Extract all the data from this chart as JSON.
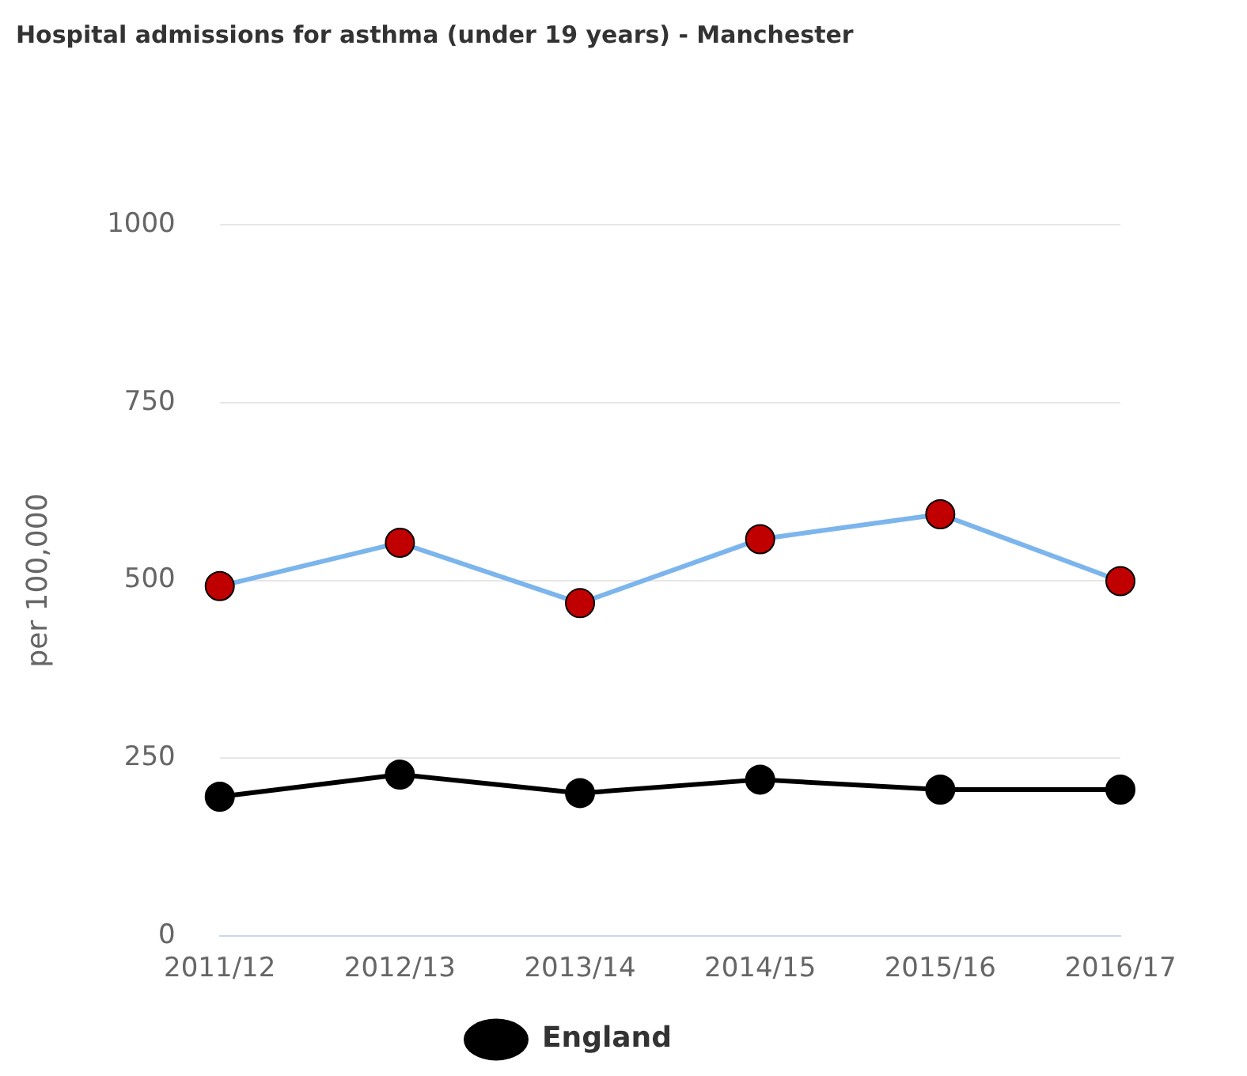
{
  "chart_data": {
    "type": "line",
    "title": "Hospital admissions for asthma (under 19 years) - Manchester",
    "ylabel": "per 100,000",
    "categories": [
      "2011/12",
      "2012/13",
      "2013/14",
      "2014/15",
      "2015/16",
      "2016/17"
    ],
    "series": [
      {
        "color": "#7cb5ec",
        "colors": [
          "#c00000",
          "#c00000",
          "#c00000",
          "#c00000",
          "#c00000",
          "#c00000"
        ],
        "values": [
          492,
          553,
          468,
          558,
          593,
          499
        ]
      },
      {
        "name": "England",
        "color": "#000000",
        "values": [
          196,
          227,
          201,
          220,
          206,
          206
        ]
      }
    ],
    "ylim": [
      0,
      1000
    ],
    "yticks": [
      0,
      250,
      500,
      750,
      1000
    ],
    "grid": "y",
    "legend": "bottom",
    "marker": "circle",
    "line_style": "solid"
  }
}
